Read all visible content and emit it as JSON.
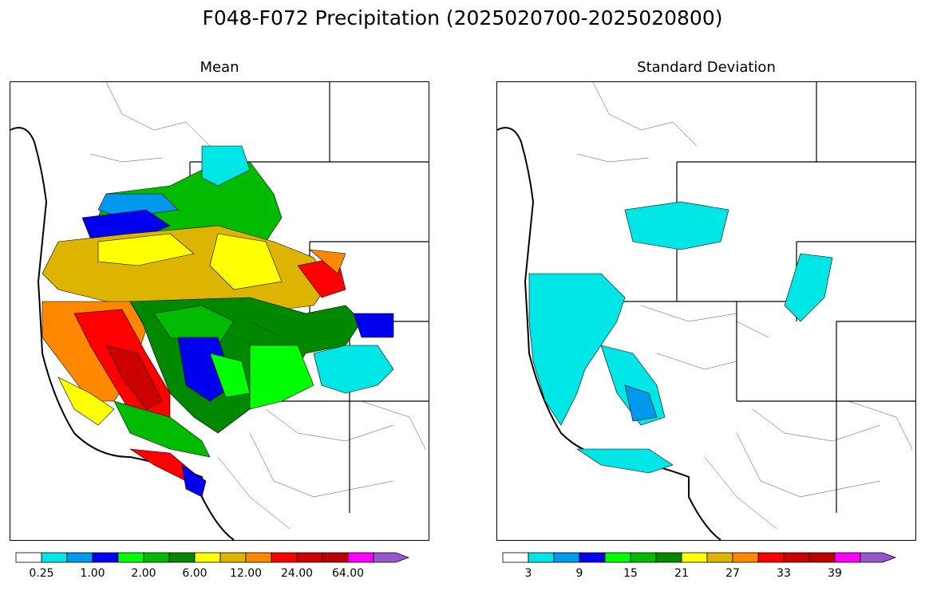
{
  "title": "F048-F072 Precipitation (2025020700-2025020800)",
  "panels": [
    {
      "id": "mean",
      "title": "Mean",
      "colorbar": {
        "colors": [
          "#ffffff",
          "#00e5e5",
          "#0099ee",
          "#0000ee",
          "#00ff00",
          "#00bb00",
          "#008800",
          "#ffff00",
          "#ddb500",
          "#ff8800",
          "#ff0000",
          "#cc0000",
          "#bb0000",
          "#ff00ff",
          "#9955cc"
        ],
        "tick_labels": [
          "0.25",
          "1.00",
          "2.00",
          "6.00",
          "12.00",
          "24.00",
          "64.00"
        ]
      }
    },
    {
      "id": "stddev",
      "title": "Standard Deviation",
      "colorbar": {
        "colors": [
          "#ffffff",
          "#00e5e5",
          "#0099ee",
          "#0000ee",
          "#00ff00",
          "#00bb00",
          "#008800",
          "#ffff00",
          "#ddb500",
          "#ff8800",
          "#ff0000",
          "#cc0000",
          "#bb0000",
          "#ff00ff",
          "#9955cc"
        ],
        "tick_labels": [
          "3",
          "9",
          "15",
          "21",
          "27",
          "33",
          "39"
        ]
      }
    }
  ]
}
